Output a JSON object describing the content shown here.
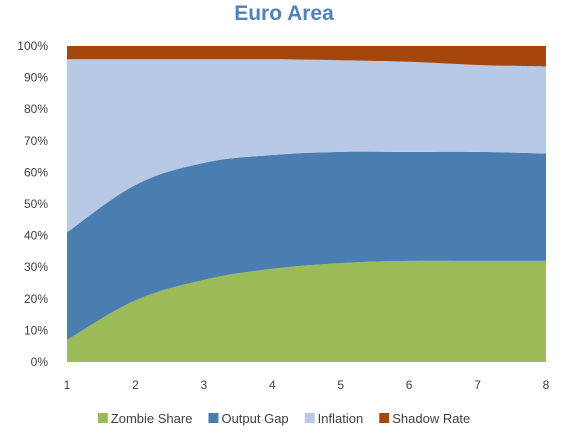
{
  "chart_data": {
    "type": "area",
    "stacking": "percent",
    "title": "Euro Area",
    "xlabel": "",
    "ylabel": "",
    "x": [
      1,
      2,
      3,
      4,
      5,
      6,
      7,
      8
    ],
    "ylim": [
      0,
      100
    ],
    "y_ticks": [
      "0%",
      "10%",
      "20%",
      "30%",
      "40%",
      "50%",
      "60%",
      "70%",
      "80%",
      "90%",
      "100%"
    ],
    "x_ticks": [
      "1",
      "2",
      "3",
      "4",
      "5",
      "6",
      "7",
      "8"
    ],
    "grid": false,
    "legend_position": "bottom",
    "series": [
      {
        "name": "Zombie Share",
        "color": "#9bbb59",
        "values": [
          7,
          19.5,
          26,
          29.5,
          31.3,
          32,
          32,
          32
        ]
      },
      {
        "name": "Output Gap",
        "color": "#4a7eb0",
        "values": [
          34,
          36.5,
          37,
          36,
          35.2,
          34.5,
          34.5,
          34
        ]
      },
      {
        "name": "Inflation",
        "color": "#b8c9e6",
        "values": [
          54.8,
          39.8,
          32.8,
          30.3,
          29,
          28.5,
          27.5,
          27.5
        ]
      },
      {
        "name": "Shadow Rate",
        "color": "#a5460d",
        "values": [
          4.2,
          4.2,
          4.2,
          4.2,
          4.5,
          5,
          6,
          6.5
        ]
      }
    ]
  }
}
